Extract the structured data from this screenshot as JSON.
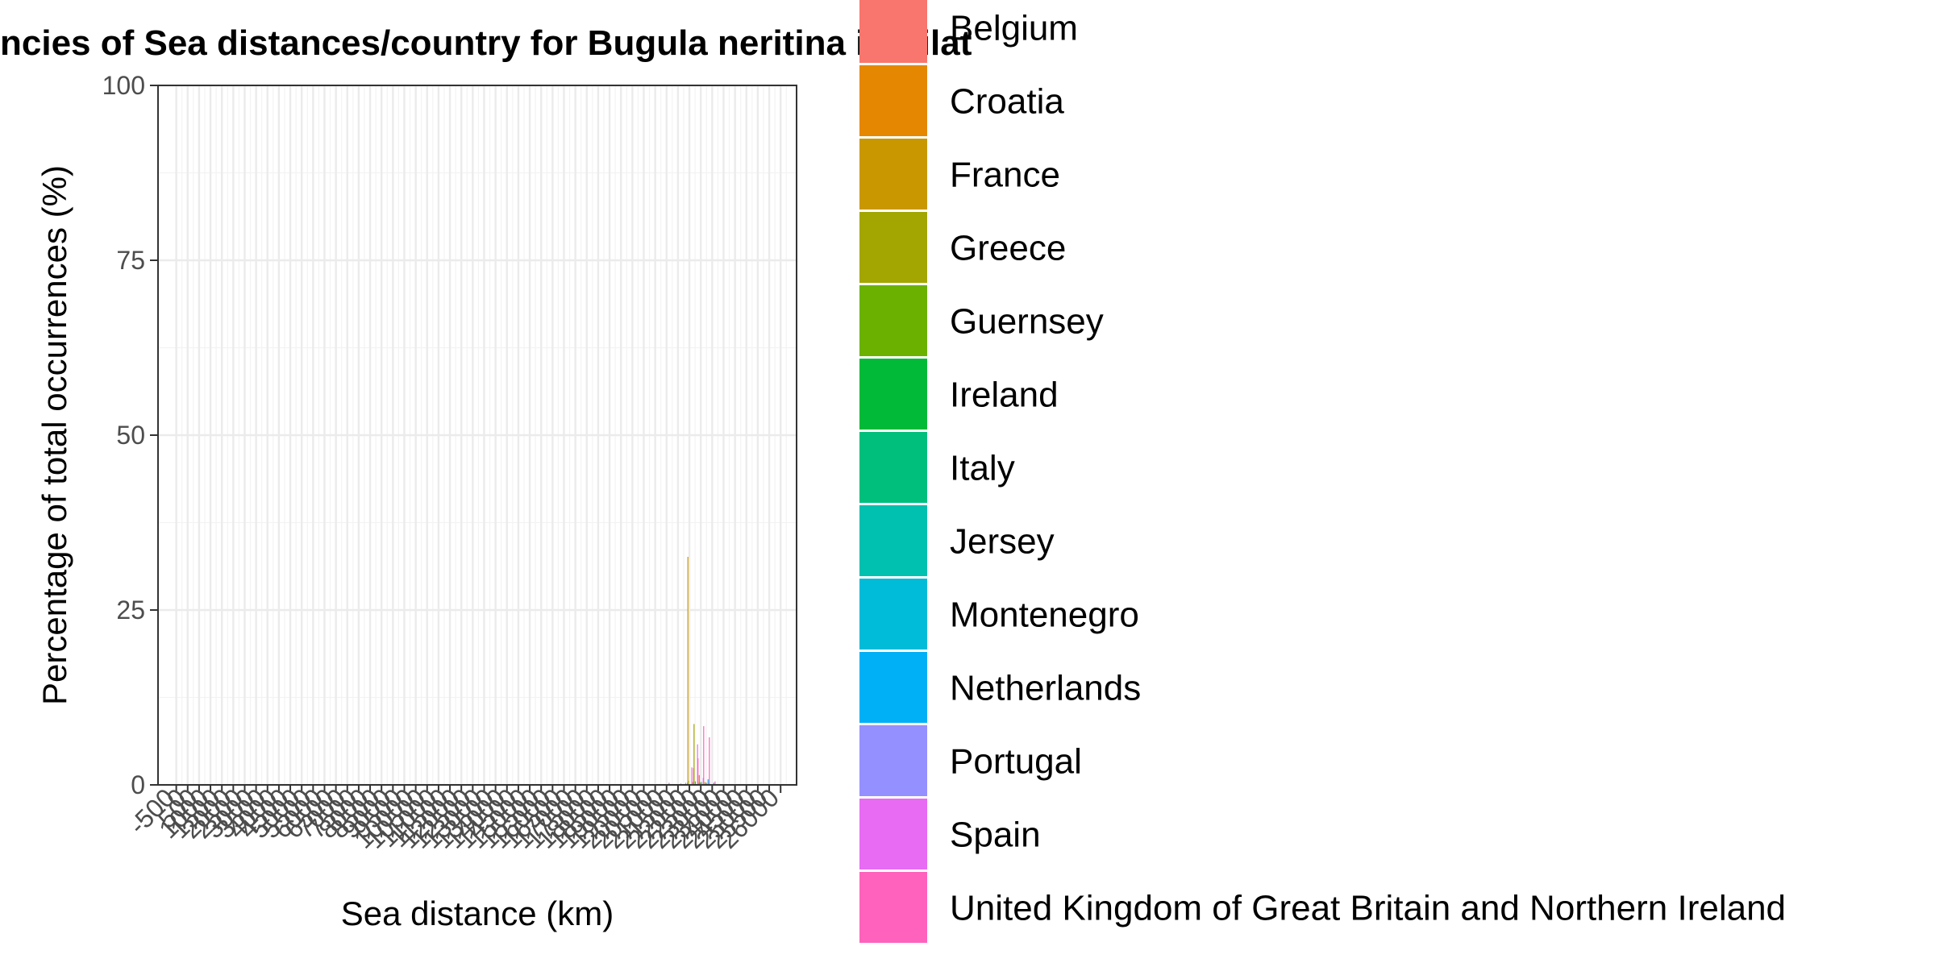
{
  "chart_data": {
    "type": "bar",
    "title": "ncies of Sea distances/country for Bugula neritina in Eilat",
    "xlabel": "Sea distance (km)",
    "ylabel": "Percentage of total occurrences (%)",
    "ylim": [
      0,
      100
    ],
    "y_ticks": [
      0,
      25,
      50,
      75,
      100
    ],
    "y_tick_labels": [
      "0",
      "25",
      "50",
      "75",
      "100"
    ],
    "x_tick_labels": [
      "-500",
      "0",
      "500",
      "1000",
      "1500",
      "2000",
      "2500",
      "3000",
      "3500",
      "4000",
      "4500",
      "5000",
      "5500",
      "6000",
      "6500",
      "7000",
      "7500",
      "8000",
      "8500",
      "9000",
      "9500",
      "10000",
      "10500",
      "11000",
      "11500",
      "12000",
      "12500",
      "13000",
      "13500",
      "14000",
      "14500",
      "15000",
      "15500",
      "16000",
      "16500",
      "17000",
      "17500",
      "18000",
      "18500",
      "19000",
      "19500",
      "20000",
      "20500",
      "21000",
      "21500",
      "22000",
      "22500",
      "23000",
      "23500",
      "24000",
      "24500",
      "25000",
      "25500",
      "26000"
    ],
    "grid": true,
    "legend_position": "right",
    "x": [
      20500,
      21000,
      21500,
      21750,
      22000,
      22250,
      22500,
      22750,
      23000
    ],
    "series": [
      {
        "name": "Belgium",
        "color": "#F8766D",
        "values": [
          0,
          0,
          0,
          0,
          0,
          0.4,
          0.3,
          0,
          0
        ]
      },
      {
        "name": "Croatia",
        "color": "#E58700",
        "values": [
          0,
          0,
          0,
          0,
          0.3,
          0,
          0,
          0,
          0
        ]
      },
      {
        "name": "France",
        "color": "#C99800",
        "values": [
          0,
          0,
          0,
          0,
          32.6,
          2.4,
          1.4,
          0.4,
          0
        ]
      },
      {
        "name": "Greece",
        "color": "#A3A500",
        "values": [
          0,
          0,
          0,
          0,
          0.6,
          8.7,
          0.4,
          0,
          0
        ]
      },
      {
        "name": "Guernsey",
        "color": "#6BB100",
        "values": [
          0,
          0,
          0,
          0,
          0,
          0,
          0.3,
          0,
          0
        ]
      },
      {
        "name": "Ireland",
        "color": "#00BA38",
        "values": [
          0,
          0,
          0,
          0,
          0,
          0,
          0,
          0.3,
          0
        ]
      },
      {
        "name": "Italy",
        "color": "#00BF7D",
        "values": [
          0,
          0,
          0,
          0,
          0,
          0.5,
          0,
          0,
          0
        ]
      },
      {
        "name": "Jersey",
        "color": "#00C0AF",
        "values": [
          0,
          0,
          0,
          0,
          0,
          0,
          0.4,
          0,
          0
        ]
      },
      {
        "name": "Montenegro",
        "color": "#00BCD8",
        "values": [
          0,
          0,
          0,
          0,
          0,
          0,
          0,
          0,
          0
        ]
      },
      {
        "name": "Netherlands",
        "color": "#00B0F6",
        "values": [
          0,
          0,
          0,
          0,
          0,
          0,
          0,
          0.8,
          0.3
        ]
      },
      {
        "name": "Portugal",
        "color": "#9590FF",
        "values": [
          0,
          0,
          0,
          0.3,
          0,
          0,
          0,
          0,
          0
        ]
      },
      {
        "name": "Spain",
        "color": "#E76BF3",
        "values": [
          0,
          0.3,
          0,
          0,
          2.5,
          5.8,
          1.0,
          0.3,
          0
        ]
      },
      {
        "name": "United Kingdom of Great Britain and Northern Ireland",
        "color": "#FF62BC",
        "values": [
          0,
          0,
          0.2,
          0,
          0,
          3.8,
          8.4,
          6.8,
          0.5
        ]
      }
    ]
  }
}
